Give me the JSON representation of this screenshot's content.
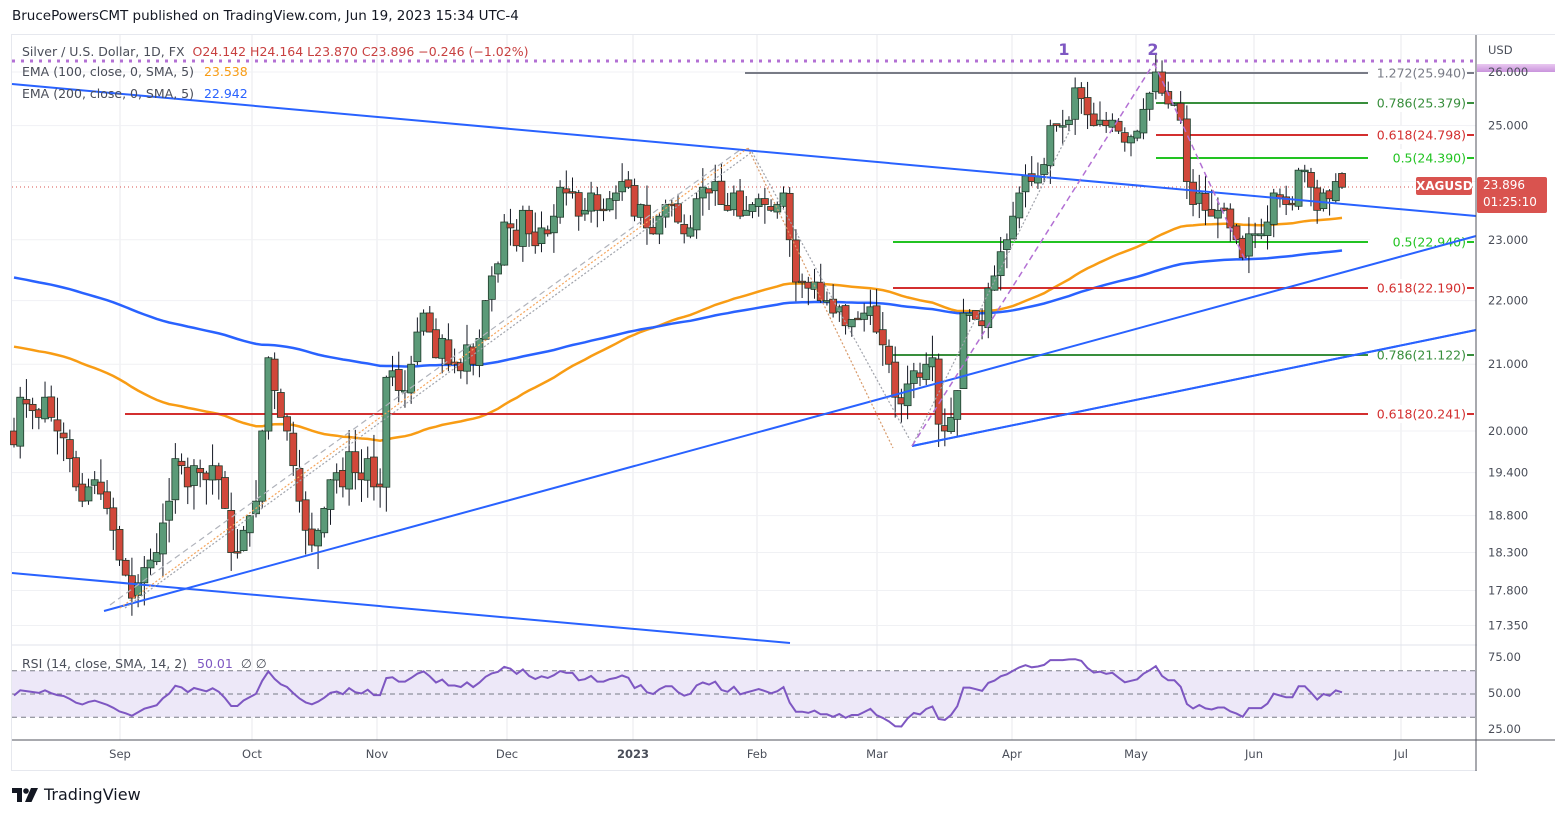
{
  "header": {
    "publisher_line": "BrucePowersCMT published on TradingView.com, Jun 19, 2023 15:34 UTC-4"
  },
  "legend": {
    "symbol_line": "Silver / U.S. Dollar, 1D, FX",
    "ohlc": "O24.142  H24.164  L23.870  C23.896  −0.246 (−1.02%)",
    "ema100_label": "EMA (100, close, 0, SMA, 5)",
    "ema100_value": "23.538",
    "ema200_label": "EMA (200, close, 0, SMA, 5)",
    "ema200_value": "22.942",
    "rsi_label": "RSI (14, close, SMA, 14, 2)",
    "rsi_value": "50.01",
    "rsi_extra": "∅  ∅"
  },
  "price_axis": {
    "currency": "USD",
    "ticks": [
      "26.000",
      "25.000",
      "24.000",
      "23.000",
      "22.000",
      "21.000",
      "20.000",
      "19.400",
      "18.800",
      "18.300",
      "17.800",
      "17.350"
    ],
    "last_price": "23.896",
    "countdown": "01:25:10",
    "symbol_badge": "XAGUSD",
    "top_highlight": "26.079"
  },
  "rsi_axis": {
    "ticks": [
      "75.00",
      "50.00",
      "25.00"
    ]
  },
  "time_axis": {
    "labels": [
      "Sep",
      "Oct",
      "Nov",
      "Dec",
      "2023",
      "Feb",
      "Mar",
      "Apr",
      "May",
      "Jun",
      "Jul"
    ]
  },
  "annotations": {
    "wave_1": "1",
    "wave_2": "2"
  },
  "fib_levels": [
    {
      "label": "1.272(25.940)",
      "color": "#787b86"
    },
    {
      "label": "0.786(25.379)",
      "color": "#388e3c"
    },
    {
      "label": "0.618(24.798)",
      "color": "#d32f2f"
    },
    {
      "label": "0.5(24.390)",
      "color": "#22c322"
    },
    {
      "label": "0.5(22.940)",
      "color": "#22c322"
    },
    {
      "label": "0.618(22.190)",
      "color": "#d32f2f"
    },
    {
      "label": "0.786(21.122)",
      "color": "#388e3c"
    },
    {
      "label": "0.618(20.241)",
      "color": "#d32f2f"
    }
  ],
  "footer": {
    "brand": "TradingView"
  },
  "colors": {
    "up": "#5b9a78",
    "down": "#d1483a",
    "ema100": "#f89c14",
    "ema200": "#2962ff",
    "trendline": "#2962ff",
    "rsi": "#7e57c2",
    "rsi_band": "#ede8f8",
    "last_price": "#d9534f"
  },
  "chart_data": {
    "type": "candlestick",
    "title": "Silver / U.S. Dollar, 1D, FX",
    "symbol": "XAGUSD",
    "ylabel": "USD",
    "ylim": [
      17.2,
      26.3
    ],
    "x_tick_labels": [
      "Sep",
      "Oct",
      "Nov",
      "Dec",
      "2023",
      "Feb",
      "Mar",
      "Apr",
      "May",
      "Jun",
      "Jul"
    ],
    "y_tick_labels": [
      "26.000",
      "25.000",
      "24.000",
      "23.000",
      "22.000",
      "21.000",
      "20.000",
      "19.400",
      "18.800",
      "18.300",
      "17.800",
      "17.350"
    ],
    "last": {
      "open": 24.142,
      "high": 24.164,
      "low": 23.87,
      "close": 23.896,
      "change": -0.246,
      "change_pct": -1.02
    },
    "indicators": {
      "ema100": 23.538,
      "ema200": 22.942,
      "rsi14": 50.01
    },
    "fibonacci_levels": [
      {
        "ratio": 1.272,
        "price": 25.94
      },
      {
        "ratio": 0.786,
        "price": 25.379
      },
      {
        "ratio": 0.618,
        "price": 24.798
      },
      {
        "ratio": 0.5,
        "price": 24.39
      },
      {
        "ratio": 0.5,
        "price": 22.94
      },
      {
        "ratio": 0.618,
        "price": 22.19
      },
      {
        "ratio": 0.786,
        "price": 21.122
      },
      {
        "ratio": 0.618,
        "price": 20.241
      }
    ],
    "closes_approx": [
      19.8,
      20.5,
      20.4,
      20.3,
      20.2,
      20.5,
      20.2,
      20.0,
      19.9,
      19.6,
      19.2,
      19.0,
      19.2,
      19.3,
      19.1,
      18.9,
      18.6,
      18.2,
      18.0,
      17.7,
      17.9,
      18.1,
      18.2,
      18.3,
      18.7,
      19.0,
      19.6,
      19.5,
      19.2,
      19.5,
      19.4,
      19.3,
      19.5,
      19.3,
      18.9,
      18.3,
      18.3,
      18.6,
      18.8,
      19.0,
      20.0,
      21.1,
      20.6,
      20.2,
      20.0,
      19.5,
      19.0,
      18.6,
      18.4,
      18.6,
      18.9,
      19.3,
      19.4,
      19.2,
      19.7,
      19.4,
      19.3,
      19.6,
      19.2,
      19.2,
      20.8,
      20.9,
      20.6,
      20.6,
      21.0,
      21.5,
      21.8,
      21.5,
      21.1,
      21.4,
      21.0,
      21.0,
      20.9,
      21.3,
      21.0,
      21.4,
      22.0,
      22.4,
      22.6,
      23.3,
      23.2,
      22.9,
      23.5,
      23.1,
      22.9,
      23.2,
      23.1,
      23.4,
      23.9,
      23.8,
      23.8,
      23.4,
      23.5,
      23.8,
      23.5,
      23.5,
      23.7,
      23.8,
      24.0,
      23.9,
      23.4,
      23.6,
      23.2,
      23.1,
      23.4,
      23.6,
      23.6,
      23.3,
      23.1,
      23.2,
      23.7,
      23.9,
      23.8,
      24.0,
      23.6,
      23.5,
      23.8,
      23.4,
      23.5,
      23.6,
      23.7,
      23.6,
      23.5,
      23.6,
      23.8,
      23.0,
      22.3,
      22.3,
      22.2,
      22.3,
      22.0,
      22.0,
      21.8,
      21.9,
      21.6,
      21.7,
      21.7,
      21.8,
      21.9,
      21.5,
      21.3,
      21.0,
      20.5,
      20.4,
      20.7,
      20.9,
      20.8,
      21.0,
      21.1,
      20.1,
      20.0,
      20.2,
      20.6,
      21.8,
      21.8,
      21.7,
      21.6,
      22.2,
      22.4,
      22.8,
      23.0,
      23.4,
      23.8,
      24.1,
      24.0,
      24.1,
      24.3,
      25.0,
      25.0,
      25.0,
      25.1,
      25.7,
      25.5,
      25.2,
      25.0,
      25.1,
      25.0,
      25.1,
      24.9,
      24.7,
      24.8,
      24.9,
      25.3,
      25.6,
      26.0,
      25.6,
      25.4,
      25.4,
      25.1,
      24.0,
      23.6,
      23.8,
      23.5,
      23.4,
      23.5,
      23.5,
      23.2,
      23.0,
      22.7,
      23.1,
      23.1,
      23.1,
      23.3,
      23.8,
      23.7,
      23.6,
      23.6,
      24.2,
      24.2,
      23.9,
      23.5,
      23.8,
      23.7,
      24.0,
      23.9
    ]
  }
}
